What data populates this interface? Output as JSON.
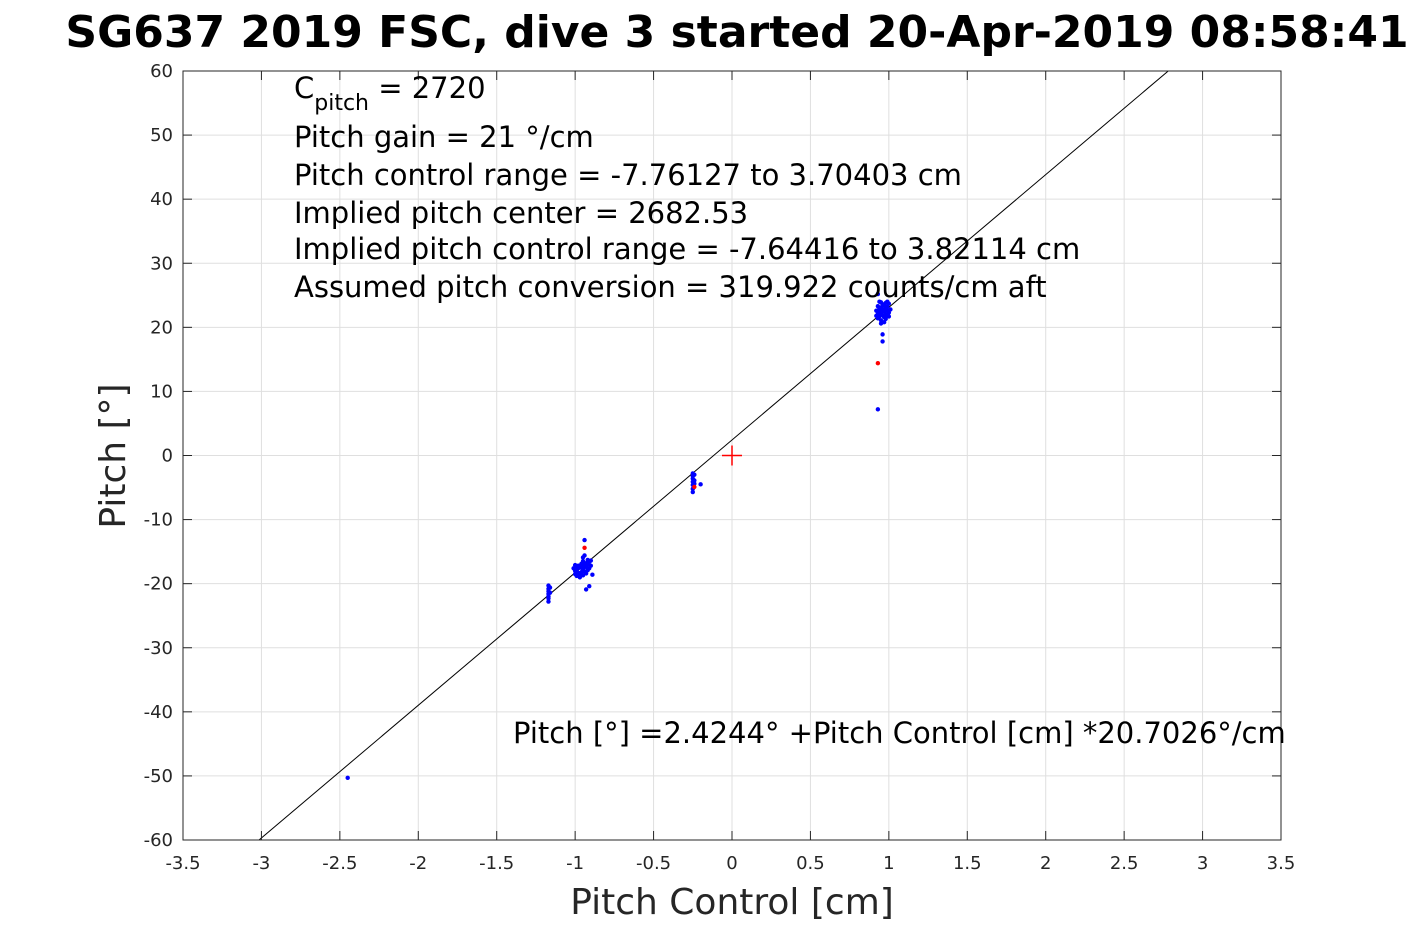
{
  "chart_data": {
    "type": "scatter",
    "title": "SG637 2019 FSC, dive 3 started 20-Apr-2019 08:58:41",
    "xlabel": "Pitch Control [cm]",
    "ylabel": "Pitch [°]",
    "xlim": [
      -3.5,
      3.5
    ],
    "ylim": [
      -60,
      60
    ],
    "grid": true,
    "xticks": [
      -3.5,
      -3,
      -2.5,
      -2,
      -1.5,
      -1,
      -0.5,
      0,
      0.5,
      1,
      1.5,
      2,
      2.5,
      3,
      3.5
    ],
    "xtick_labels": [
      "-3.5",
      "-3",
      "-2.5",
      "-2",
      "-1.5",
      "-1",
      "-0.5",
      "0",
      "0.5",
      "1",
      "1.5",
      "2",
      "2.5",
      "3",
      "3.5"
    ],
    "yticks": [
      -60,
      -50,
      -40,
      -30,
      -20,
      -10,
      0,
      10,
      20,
      30,
      40,
      50,
      60
    ],
    "ytick_labels": [
      "-60",
      "-50",
      "-40",
      "-30",
      "-20",
      "-10",
      "0",
      "10",
      "20",
      "30",
      "40",
      "50",
      "60"
    ],
    "annotations": {
      "c_pitch_main": "C",
      "c_pitch_sub": "pitch",
      "c_pitch_value": " = 2720",
      "lines": [
        "Pitch gain = 21 °/cm",
        "Pitch control range = -7.76127 to 3.70403 cm",
        "Implied pitch center = 2682.53",
        "Implied pitch control range = -7.64416 to 3.82114 cm",
        "Assumed pitch conversion = 319.922 counts/cm aft"
      ],
      "fit_equation": "Pitch [°] =2.4244° +Pitch Control [cm] *20.7026°/cm"
    },
    "fit_line": {
      "intercept": 2.4244,
      "slope": 20.7026,
      "color": "#000000"
    },
    "center_marker": {
      "x": 0,
      "y": 0,
      "color": "#ff0000"
    },
    "series": [
      {
        "color": "#0000ff",
        "points": [
          [
            -2.45,
            -50.3
          ],
          [
            -1.17,
            -20.3
          ],
          [
            -1.17,
            -20.8
          ],
          [
            -1.17,
            -21.2
          ],
          [
            -1.17,
            -21.6
          ],
          [
            -1.17,
            -22.0
          ],
          [
            -1.17,
            -22.3
          ],
          [
            -1.17,
            -22.8
          ],
          [
            -1.16,
            -20.6
          ],
          [
            -1.16,
            -21.4
          ],
          [
            -1.01,
            -17.6
          ],
          [
            -1.0,
            -18.0
          ],
          [
            -1.0,
            -18.5
          ],
          [
            -0.99,
            -18.8
          ],
          [
            -0.99,
            -17.9
          ],
          [
            -0.98,
            -17.2
          ],
          [
            -0.98,
            -18.3
          ],
          [
            -0.97,
            -19.0
          ],
          [
            -0.97,
            -17.5
          ],
          [
            -0.96,
            -18.2
          ],
          [
            -0.96,
            -16.9
          ],
          [
            -0.95,
            -17.7
          ],
          [
            -0.95,
            -18.7
          ],
          [
            -0.95,
            -16.5
          ],
          [
            -0.94,
            -17.1
          ],
          [
            -0.94,
            -18.1
          ],
          [
            -0.94,
            -15.6
          ],
          [
            -0.94,
            -13.2
          ],
          [
            -0.93,
            -17.4
          ],
          [
            -0.93,
            -16.8
          ],
          [
            -0.93,
            -18.4
          ],
          [
            -0.93,
            -20.9
          ],
          [
            -0.92,
            -17.9
          ],
          [
            -0.92,
            -16.3
          ],
          [
            -0.92,
            -17.0
          ],
          [
            -0.91,
            -17.6
          ],
          [
            -0.91,
            -16.6
          ],
          [
            -0.91,
            -20.4
          ],
          [
            -0.9,
            -17.2
          ],
          [
            -0.9,
            -16.4
          ],
          [
            -0.89,
            -18.6
          ],
          [
            -0.95,
            -15.9
          ],
          [
            -0.96,
            -17.3
          ],
          [
            -0.97,
            -18.6
          ],
          [
            -0.99,
            -17.4
          ],
          [
            -1.0,
            -17.1
          ],
          [
            -0.25,
            -2.8
          ],
          [
            -0.25,
            -3.2
          ],
          [
            -0.25,
            -3.6
          ],
          [
            -0.25,
            -4.1
          ],
          [
            -0.25,
            -4.6
          ],
          [
            -0.25,
            -5.2
          ],
          [
            -0.25,
            -5.7
          ],
          [
            -0.24,
            -3.0
          ],
          [
            -0.24,
            -3.9
          ],
          [
            -0.24,
            -4.4
          ],
          [
            -0.2,
            -4.5
          ],
          [
            0.93,
            7.2
          ],
          [
            0.93,
            25.2
          ],
          [
            0.92,
            22.6
          ],
          [
            0.92,
            21.8
          ],
          [
            0.93,
            23.3
          ],
          [
            0.93,
            22.1
          ],
          [
            0.93,
            21.4
          ],
          [
            0.94,
            22.9
          ],
          [
            0.94,
            22.4
          ],
          [
            0.94,
            21.7
          ],
          [
            0.94,
            24.0
          ],
          [
            0.95,
            23.1
          ],
          [
            0.95,
            22.2
          ],
          [
            0.95,
            21.1
          ],
          [
            0.95,
            20.6
          ],
          [
            0.96,
            22.8
          ],
          [
            0.96,
            21.9
          ],
          [
            0.96,
            23.6
          ],
          [
            0.96,
            18.9
          ],
          [
            0.96,
            17.8
          ],
          [
            0.97,
            22.5
          ],
          [
            0.97,
            21.6
          ],
          [
            0.97,
            23.4
          ],
          [
            0.98,
            22.0
          ],
          [
            0.98,
            22.9
          ],
          [
            0.98,
            21.3
          ],
          [
            0.98,
            23.8
          ],
          [
            0.99,
            22.6
          ],
          [
            0.99,
            21.8
          ],
          [
            0.99,
            23.2
          ],
          [
            1.0,
            22.3
          ],
          [
            1.0,
            23.7
          ],
          [
            1.0,
            21.7
          ],
          [
            1.01,
            22.8
          ],
          [
            0.99,
            24.0
          ],
          [
            0.97,
            20.8
          ],
          [
            0.95,
            23.9
          ]
        ]
      },
      {
        "color": "#ff0000",
        "points": [
          [
            -0.94,
            -14.4
          ],
          [
            -0.24,
            -4.9
          ],
          [
            0.93,
            14.4
          ]
        ]
      }
    ]
  }
}
